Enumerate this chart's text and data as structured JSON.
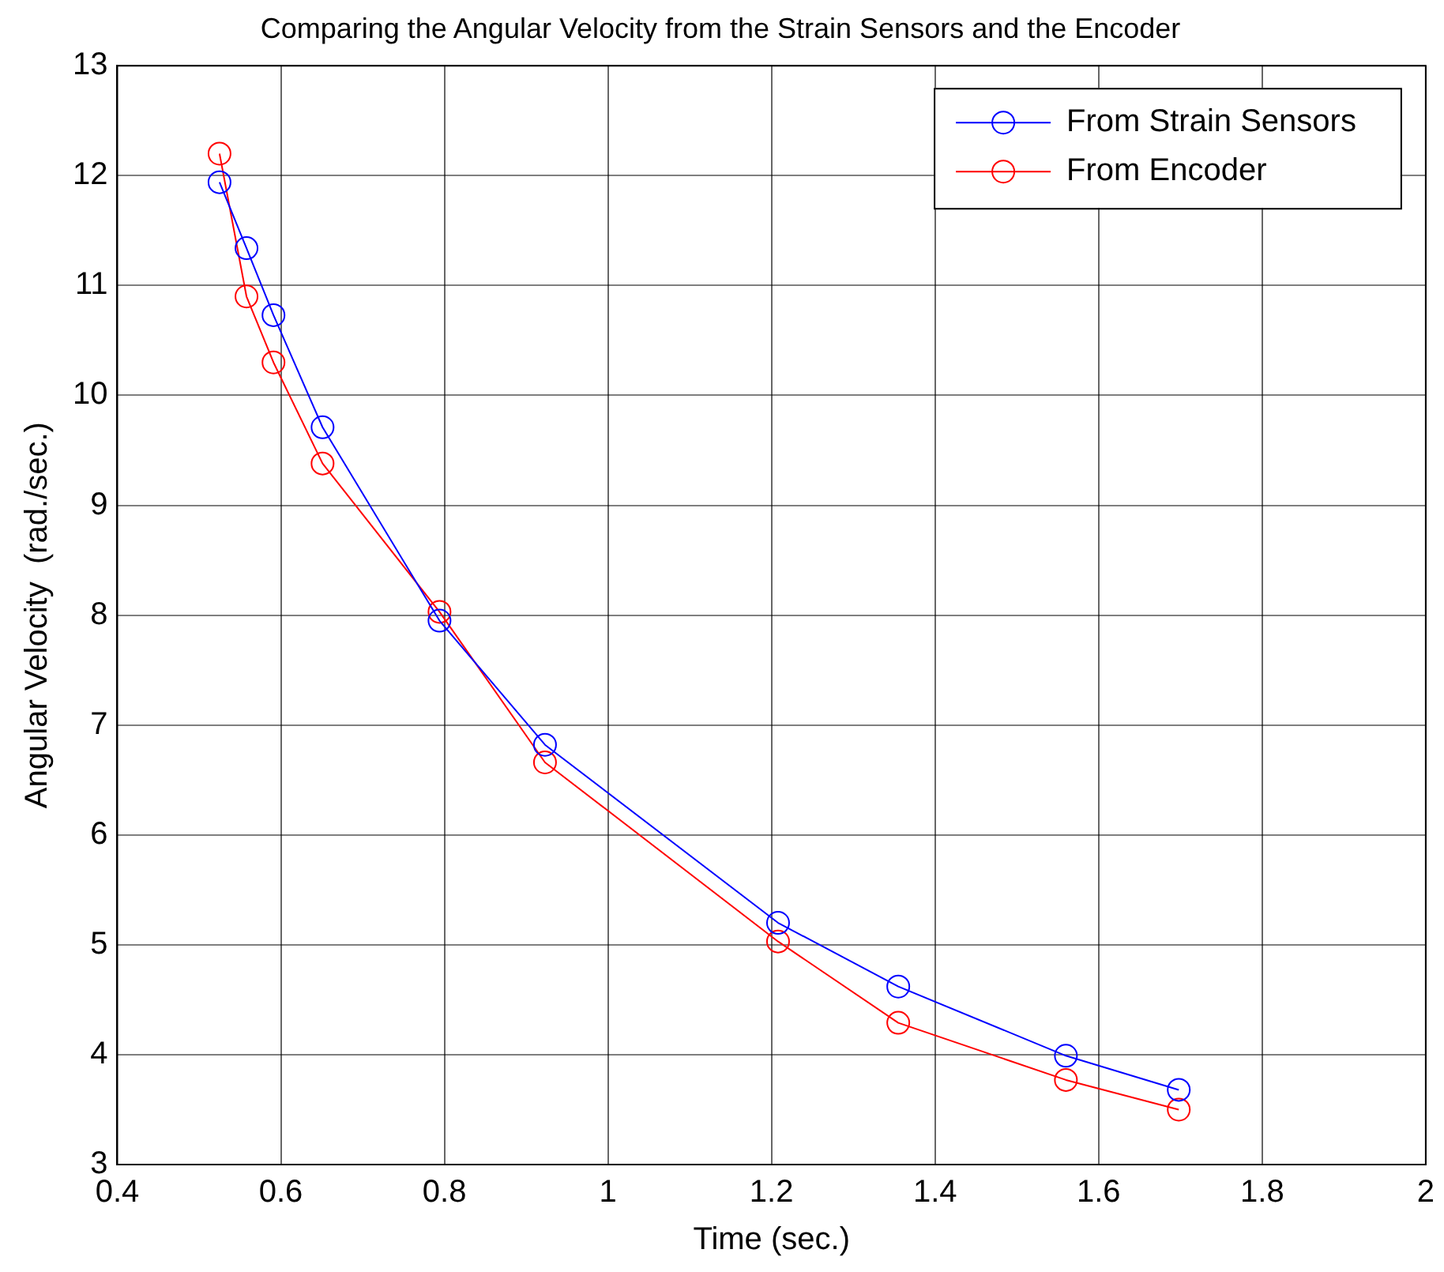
{
  "chart_data": {
    "type": "line",
    "title": "Comparing the Angular Velocity from the Strain Sensors and the Encoder",
    "xlabel": "Time (sec.)",
    "ylabel": "Angular Velocity  (rad./sec.)",
    "xlim": [
      0.4,
      2
    ],
    "xticks": [
      0.4,
      0.6,
      0.8,
      1,
      1.2,
      1.4,
      1.6,
      1.8,
      2
    ],
    "ylim": [
      3,
      13
    ],
    "yticks": [
      3,
      4,
      5,
      6,
      7,
      8,
      9,
      10,
      11,
      12,
      13
    ],
    "grid": true,
    "legend": "top right",
    "marker": "circle",
    "line_style": "solid",
    "series": [
      {
        "name": "From Strain Sensors",
        "color": "#0000ff",
        "x": [
          0.525,
          0.558,
          0.591,
          0.651,
          0.794,
          0.923,
          1.208,
          1.355,
          1.56,
          1.698
        ],
        "values": [
          11.94,
          11.34,
          10.73,
          9.71,
          7.95,
          6.82,
          5.2,
          4.62,
          3.99,
          3.68
        ]
      },
      {
        "name": "From Encoder",
        "color": "#ff0000",
        "x": [
          0.525,
          0.558,
          0.591,
          0.651,
          0.794,
          0.923,
          1.208,
          1.355,
          1.56,
          1.698
        ],
        "values": [
          12.2,
          10.9,
          10.3,
          9.38,
          8.03,
          6.66,
          5.03,
          4.29,
          3.77,
          3.5
        ]
      }
    ]
  }
}
